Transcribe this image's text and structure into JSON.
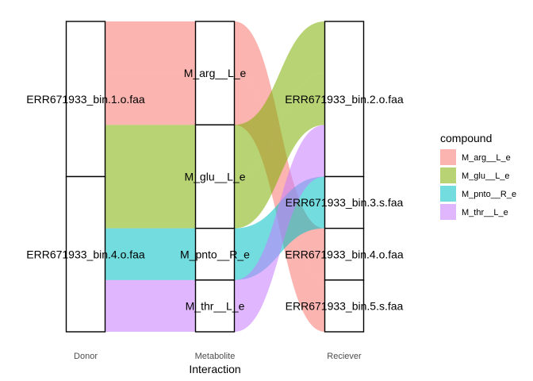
{
  "chart_data": {
    "type": "alluvial",
    "axes": [
      "Donor",
      "Metabolite",
      "Reciever"
    ],
    "xlabel": "Interaction",
    "legend": {
      "title": "compound",
      "position": "right",
      "items": [
        {
          "name": "M_arg__L_e",
          "color": "#F8766D"
        },
        {
          "name": "M_glu__L_e",
          "color": "#7CAE00"
        },
        {
          "name": "M_pnto__R_e",
          "color": "#00BFC4"
        },
        {
          "name": "M_thr__L_e",
          "color": "#C77CFF"
        }
      ]
    },
    "strata": {
      "Donor": [
        "ERR671933_bin.1.o.faa",
        "ERR671933_bin.4.o.faa"
      ],
      "Metabolite": [
        "M_arg__L_e",
        "M_glu__L_e",
        "M_pnto__R_e",
        "M_thr__L_e"
      ],
      "Reciever": [
        "ERR671933_bin.2.o.faa",
        "ERR671933_bin.3.s.faa",
        "ERR671933_bin.4.o.faa",
        "ERR671933_bin.5.s.faa"
      ]
    },
    "flows": [
      {
        "donor": "ERR671933_bin.1.o.faa",
        "metabolite": "M_arg__L_e",
        "reciever": "ERR671933_bin.4.o.faa",
        "value": 1
      },
      {
        "donor": "ERR671933_bin.1.o.faa",
        "metabolite": "M_arg__L_e",
        "reciever": "ERR671933_bin.5.s.faa",
        "value": 1
      },
      {
        "donor": "ERR671933_bin.1.o.faa",
        "metabolite": "M_glu__L_e",
        "reciever": "ERR671933_bin.2.o.faa",
        "value": 1
      },
      {
        "donor": "ERR671933_bin.4.o.faa",
        "metabolite": "M_glu__L_e",
        "reciever": "ERR671933_bin.2.o.faa",
        "value": 1
      },
      {
        "donor": "ERR671933_bin.4.o.faa",
        "metabolite": "M_pnto__R_e",
        "reciever": "ERR671933_bin.3.s.faa",
        "value": 1
      },
      {
        "donor": "ERR671933_bin.4.o.faa",
        "metabolite": "M_thr__L_e",
        "reciever": "ERR671933_bin.2.o.faa",
        "value": 1
      }
    ]
  }
}
